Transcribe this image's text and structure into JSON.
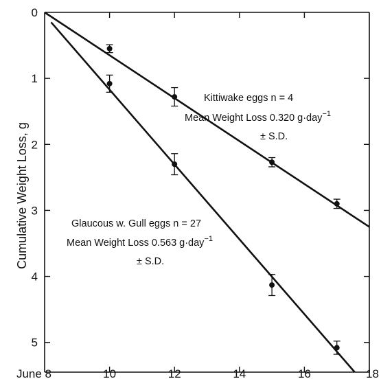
{
  "chart_data": {
    "type": "scatter",
    "title": "",
    "xlabel": "",
    "ylabel": "Cumulative Weight Loss,  g",
    "xlim": [
      8,
      18
    ],
    "ylim": [
      0,
      5.45
    ],
    "y_inverted": true,
    "x_ticks": [
      8,
      10,
      12,
      14,
      16,
      18
    ],
    "x_tick_labels": [
      "June 8",
      "10",
      "12",
      "14",
      "16",
      "18"
    ],
    "y_ticks": [
      0,
      1,
      2,
      3,
      4,
      5
    ],
    "y_tick_labels": [
      "0",
      "1",
      "2",
      "3",
      "4",
      "5"
    ],
    "grid": false,
    "series": [
      {
        "key": "kittiwake",
        "x": [
          10,
          12,
          15,
          17
        ],
        "y": [
          0.55,
          1.28,
          2.27,
          2.9
        ],
        "err": [
          0.06,
          0.14,
          0.07,
          0.07
        ],
        "fit": {
          "x": [
            8,
            18
          ],
          "y": [
            0,
            3.25
          ]
        },
        "annotation": [
          "Kittiwake eggs   n = 4",
          "Mean Weight Loss 0.320 g·day",
          "± S.D."
        ],
        "annotation_superscript": "−1"
      },
      {
        "key": "glaucous_gull",
        "x": [
          10,
          12,
          15,
          17
        ],
        "y": [
          1.08,
          2.3,
          4.13,
          5.08
        ],
        "err": [
          0.13,
          0.16,
          0.16,
          0.1
        ],
        "fit": {
          "x": [
            8.2,
            17.55
          ],
          "y": [
            0.15,
            5.45
          ]
        },
        "annotation": [
          "Glaucous w. Gull eggs   n = 27",
          "Mean Weight Loss 0.563  g·day",
          "± S.D."
        ],
        "annotation_superscript": "−1"
      }
    ]
  }
}
